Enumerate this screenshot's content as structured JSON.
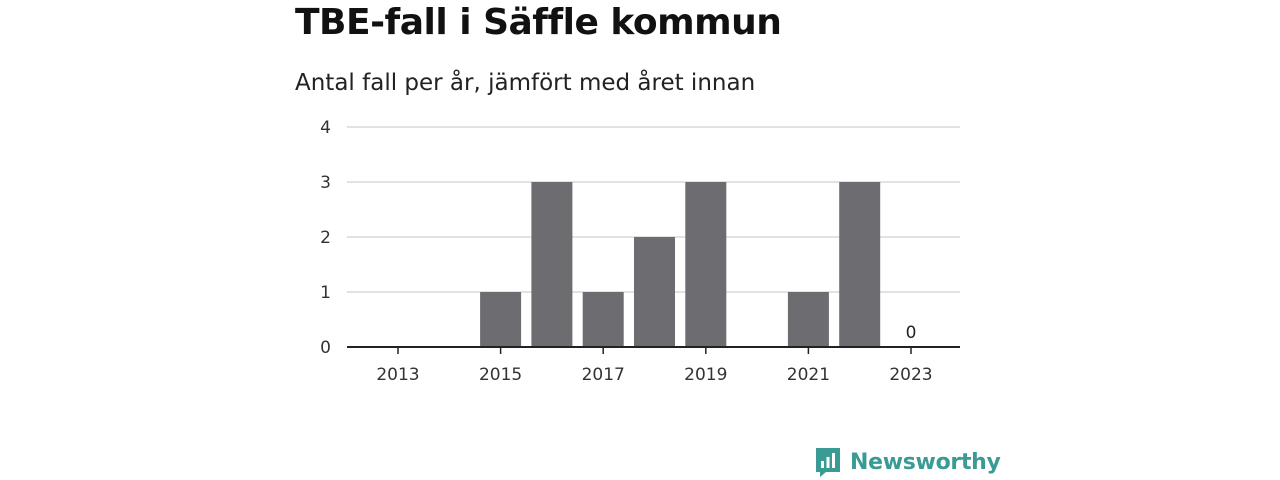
{
  "chart_data": {
    "type": "bar",
    "title": "TBE-fall i Säffle kommun",
    "subtitle": "Antal fall per år, jämfört med året innan",
    "categories": [
      2013,
      2014,
      2015,
      2016,
      2017,
      2018,
      2019,
      2020,
      2021,
      2022,
      2023
    ],
    "values": [
      0,
      0,
      1,
      3,
      1,
      2,
      3,
      0,
      1,
      3,
      0
    ],
    "x_tick_labels": [
      "2013",
      "2015",
      "2017",
      "2019",
      "2021",
      "2023"
    ],
    "y_ticks": [
      0,
      1,
      2,
      3,
      4
    ],
    "ylim": [
      0,
      4
    ],
    "grid": true,
    "bar_color": "#6d6c71",
    "data_labels": [
      {
        "category": 2023,
        "text": "0"
      }
    ]
  },
  "footer": {
    "brand": "Newsworthy",
    "brand_color": "#3a9b94",
    "logo_icon": "bar-chart-speech-bubble-icon"
  }
}
